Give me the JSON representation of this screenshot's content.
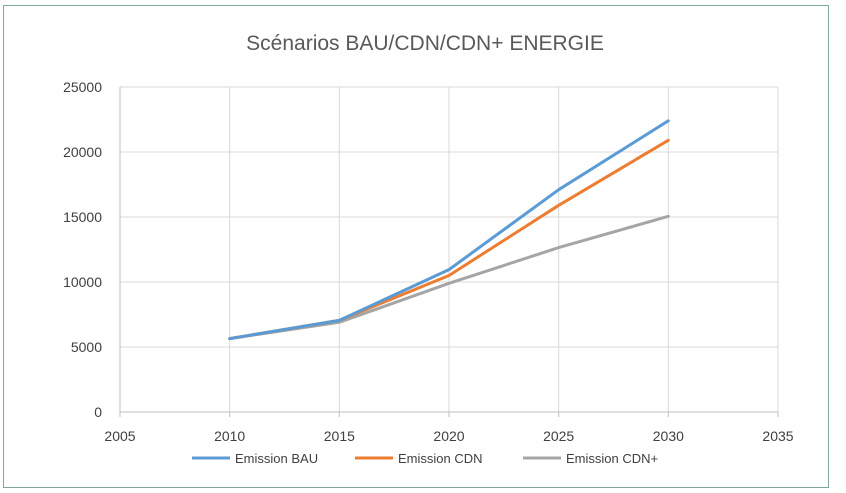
{
  "chart_data": {
    "type": "scatter",
    "title": "Scénarios BAU/CDN/CDN+ ENERGIE",
    "xlabel": "",
    "ylabel": "",
    "xlim": [
      2005,
      2035
    ],
    "ylim": [
      0,
      25000
    ],
    "xticks": [
      "2005",
      "2010",
      "2015",
      "2020",
      "2025",
      "2030",
      "2035"
    ],
    "yticks": [
      "0",
      "5000",
      "10000",
      "15000",
      "20000",
      "25000"
    ],
    "grid": true,
    "legend_position": "bottom",
    "series": [
      {
        "name": "Emission BAU",
        "color": "#5b9bd5",
        "x": [
          2010,
          2015,
          2020,
          2025,
          2030
        ],
        "y": [
          5650,
          7050,
          10950,
          17100,
          22400
        ]
      },
      {
        "name": "Emission CDN",
        "color": "#ed7d31",
        "x": [
          2010,
          2015,
          2020,
          2025,
          2030
        ],
        "y": [
          5650,
          7050,
          10500,
          15900,
          20900
        ]
      },
      {
        "name": "Emission CDN+",
        "color": "#a5a5a5",
        "x": [
          2010,
          2015,
          2020,
          2025,
          2030
        ],
        "y": [
          5650,
          6900,
          9900,
          12650,
          15050
        ]
      }
    ]
  }
}
